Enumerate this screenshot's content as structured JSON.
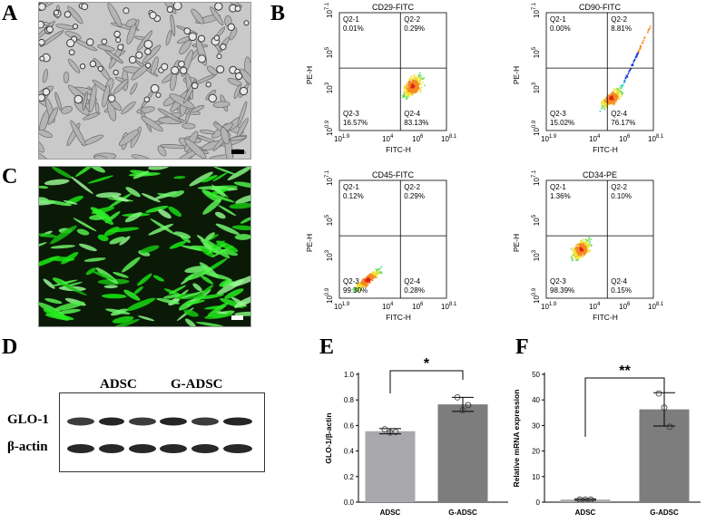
{
  "panels": {
    "a": "A",
    "b": "B",
    "c": "C",
    "d": "D",
    "e": "E",
    "f": "F"
  },
  "flow_plots": [
    {
      "title": "CD29-FITC",
      "x_axis": "FITC-H",
      "y_axis": "PE-H",
      "quadrants": [
        {
          "name": "Q2-1",
          "pct": "0.01%"
        },
        {
          "name": "Q2-2",
          "pct": "0.29%"
        },
        {
          "name": "Q2-3",
          "pct": "16.57%"
        },
        {
          "name": "Q2-4",
          "pct": "83.13%"
        }
      ]
    },
    {
      "title": "CD90-FITC",
      "x_axis": "FITC-H",
      "y_axis": "PE-H",
      "quadrants": [
        {
          "name": "Q2-1",
          "pct": "0.00%"
        },
        {
          "name": "Q2-2",
          "pct": "8.81%"
        },
        {
          "name": "Q2-3",
          "pct": "15.02%"
        },
        {
          "name": "Q2-4",
          "pct": "76.17%"
        }
      ]
    },
    {
      "title": "CD45-FITC",
      "x_axis": "FITC-H",
      "y_axis": "PE-H",
      "quadrants": [
        {
          "name": "Q2-1",
          "pct": "0.12%"
        },
        {
          "name": "Q2-2",
          "pct": "0.29%"
        },
        {
          "name": "Q2-3",
          "pct": "99.30%"
        },
        {
          "name": "Q2-4",
          "pct": "0.28%"
        }
      ]
    },
    {
      "title": "CD34-PE",
      "x_axis": "FITC-H",
      "y_axis": "PE-H",
      "quadrants": [
        {
          "name": "Q2-1",
          "pct": "1.36%"
        },
        {
          "name": "Q2-2",
          "pct": "0.10%"
        },
        {
          "name": "Q2-3",
          "pct": "98.39%"
        },
        {
          "name": "Q2-4",
          "pct": "0.15%"
        }
      ]
    }
  ],
  "flow_ticks": {
    "x": [
      {
        "base": "10",
        "exp": "1.9"
      },
      {
        "base": "10",
        "exp": "4"
      },
      {
        "base": "10",
        "exp": "6"
      },
      {
        "base": "10",
        "exp": "8.1"
      }
    ],
    "y": [
      {
        "base": "10",
        "exp": "0.9"
      },
      {
        "base": "10",
        "exp": "3"
      },
      {
        "base": "10",
        "exp": "5"
      },
      {
        "base": "10",
        "exp": "7.1"
      }
    ]
  },
  "blot": {
    "group1": "ADSC",
    "group2": "G-ADSC",
    "row1": "GLO-1",
    "row2": "β-actin"
  },
  "chart_data": [
    {
      "type": "bar",
      "panel": "E",
      "categories": [
        "ADSC",
        "G-ADSC"
      ],
      "values": [
        0.555,
        0.765
      ],
      "errors": [
        0.02,
        0.055
      ],
      "points": [
        [
          0.57,
          0.545,
          0.548
        ],
        [
          0.82,
          0.72,
          0.76
        ]
      ],
      "ylabel": "GLO-1/β-actin",
      "ylim": [
        0.0,
        1.0
      ],
      "yticks": [
        "0.0",
        "0.2",
        "0.4",
        "0.6",
        "0.8",
        "1.0"
      ],
      "significance": "*",
      "colors": [
        "#a8a8ad",
        "#7d7d7d"
      ]
    },
    {
      "type": "bar",
      "panel": "F",
      "categories": [
        "ADSC",
        "G-ADSC"
      ],
      "values": [
        1,
        36.3
      ],
      "errors": [
        0.3,
        6.5
      ],
      "points": [
        [
          1,
          1,
          1
        ],
        [
          42.5,
          37,
          29.5
        ]
      ],
      "ylabel": "Relative mRNA expression",
      "ylim": [
        0,
        50
      ],
      "yticks": [
        "0",
        "10",
        "20",
        "30",
        "40",
        "50"
      ],
      "significance": "**",
      "colors": [
        "#a8a8ad",
        "#7d7d7d"
      ]
    }
  ]
}
